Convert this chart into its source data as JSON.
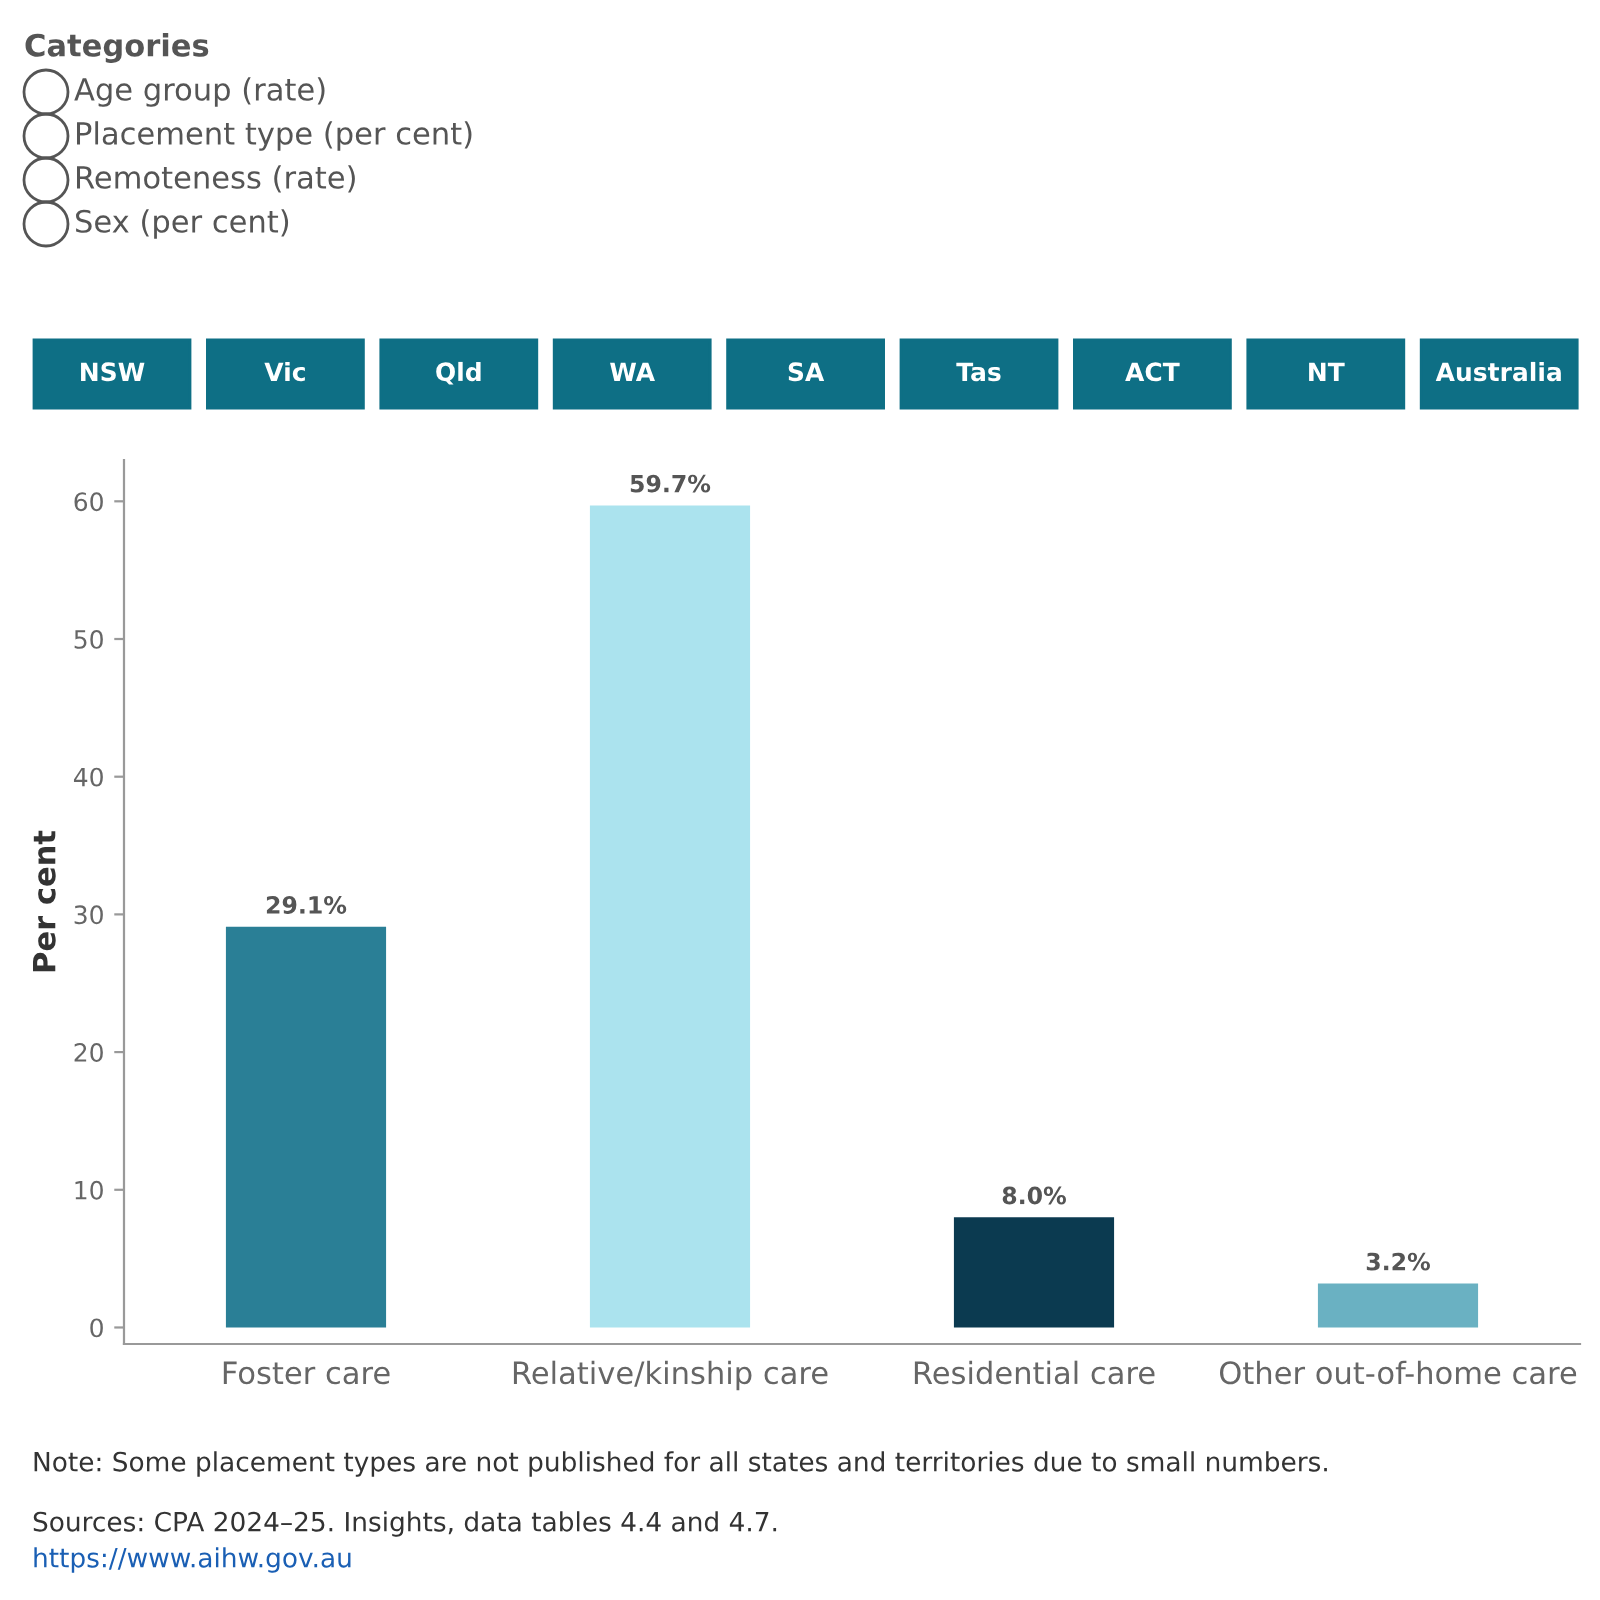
{
  "chart_data": {
    "type": "bar",
    "ylabel": "Per cent",
    "categories": [
      "Foster care",
      "Relative/kinship care",
      "Residential care",
      "Other out-of-home care"
    ],
    "values": [
      29.1,
      59.7,
      8.0,
      3.2
    ],
    "colors": [
      "#2a7f96",
      "#abe3ee",
      "#0b3a50",
      "#6ab1c2"
    ],
    "value_labels": [
      "29.1%",
      "59.7%",
      "8.0%",
      "3.2%"
    ],
    "ylim": [
      -1.2,
      63
    ],
    "yticks": [
      0,
      10,
      20,
      30,
      40,
      50,
      60
    ],
    "grid": false,
    "annotations": [
      "Categories",
      "Age group (rate)",
      "Placement type (per cent)",
      "Remoteness (rate)",
      "Sex (per cent)",
      "NSW",
      "Vic",
      "Qld",
      "WA",
      "SA",
      "Tas",
      "ACT",
      "NT",
      "Australia",
      "Note: Some placement types are not published for all states and territories due to small numbers.",
      "Sources: CPA 2024–25. Insights, data tables 4.4 and 4.7.",
      "https://www.aihw.gov.au"
    ]
  }
}
